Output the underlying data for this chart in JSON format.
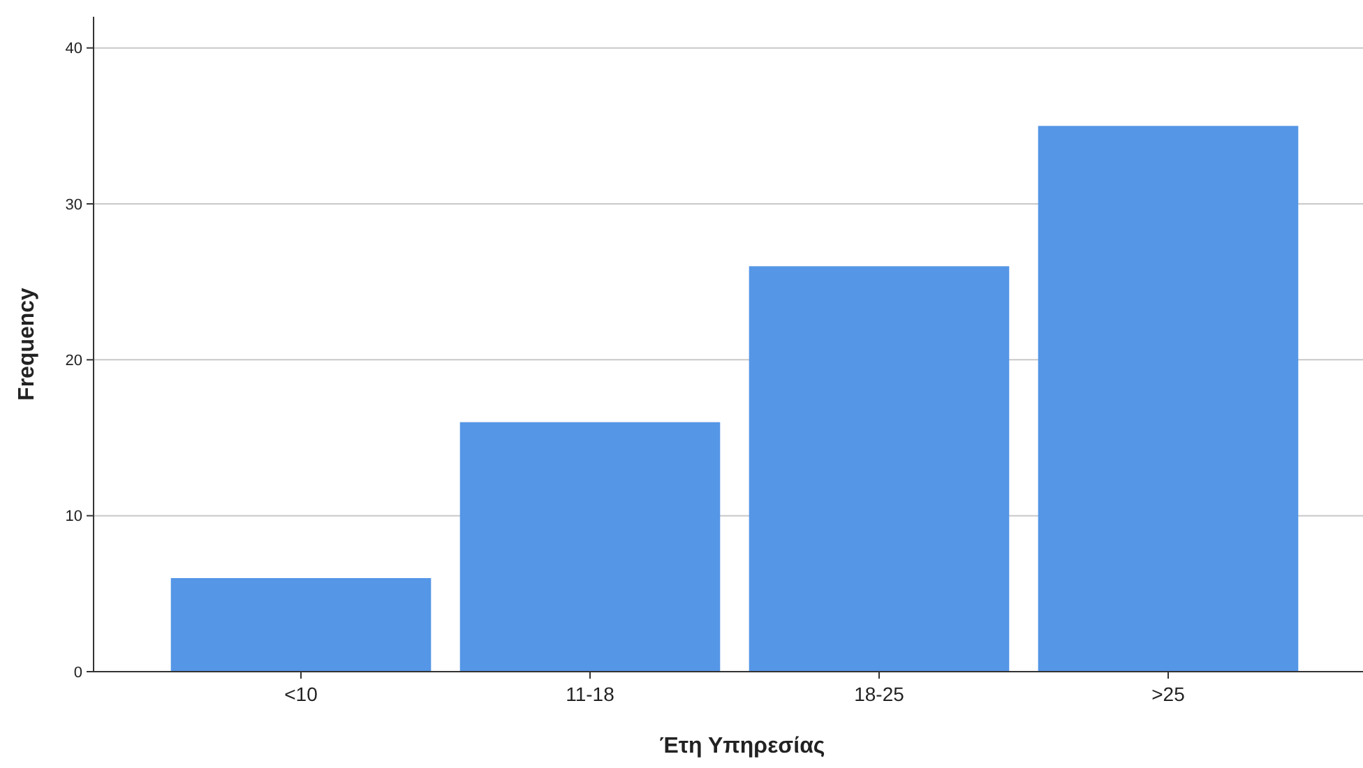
{
  "chart_data": {
    "type": "bar",
    "xlabel": "Έτη Υπηρεσίας",
    "ylabel": "Frequency",
    "categories": [
      "<10",
      "11-18",
      "18-25",
      ">25"
    ],
    "values": [
      6,
      16,
      26,
      35
    ],
    "color": "#5596e6",
    "ylim": [
      0,
      42
    ],
    "yticks": [
      0,
      10,
      20,
      30,
      40
    ],
    "grid": "y"
  }
}
